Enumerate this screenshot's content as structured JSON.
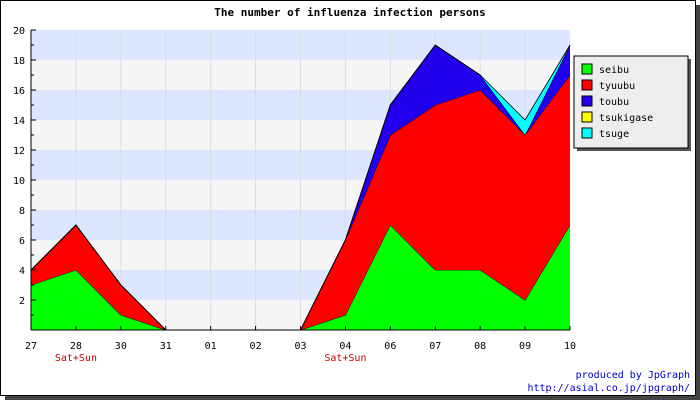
{
  "chart_data": {
    "type": "area",
    "stacked": true,
    "title": "The number of influenza infection persons",
    "categories": [
      "27",
      "28",
      "30",
      "31",
      "01",
      "02",
      "03",
      "04",
      "06",
      "07",
      "08",
      "09",
      "10"
    ],
    "weekend_markers": [
      {
        "category": "28",
        "label": "Sat+Sun"
      },
      {
        "category": "04",
        "label": "Sat+Sun"
      }
    ],
    "ylim": [
      0,
      20
    ],
    "yticks": [
      "2",
      "4",
      "6",
      "8",
      "10",
      "12",
      "14",
      "16",
      "18",
      "20"
    ],
    "grid": true,
    "legend_position": "right",
    "series": [
      {
        "name": "seibu",
        "color": "#00ff00",
        "values": [
          3,
          4,
          1,
          0,
          null,
          null,
          0,
          1,
          7,
          4,
          4,
          2,
          7
        ]
      },
      {
        "name": "tyuubu",
        "color": "#ff0000",
        "values": [
          1,
          3,
          2,
          0,
          null,
          null,
          0,
          5,
          6,
          11,
          12,
          11,
          10
        ]
      },
      {
        "name": "toubu",
        "color": "#2200ee",
        "values": [
          0,
          0,
          0,
          0,
          null,
          null,
          0,
          0,
          2,
          4,
          1,
          0,
          2
        ]
      },
      {
        "name": "tsukigase",
        "color": "#ffff00",
        "values": [
          0,
          0,
          0,
          0,
          null,
          null,
          0,
          0,
          0,
          0,
          0,
          0,
          0
        ]
      },
      {
        "name": "tsuge",
        "color": "#00ffff",
        "values": [
          0,
          0,
          0,
          0,
          null,
          null,
          0,
          0,
          0,
          0,
          0,
          1,
          0
        ]
      }
    ],
    "credit": [
      "produced by JpGraph",
      "http://asial.co.jp/jpgraph/"
    ]
  }
}
